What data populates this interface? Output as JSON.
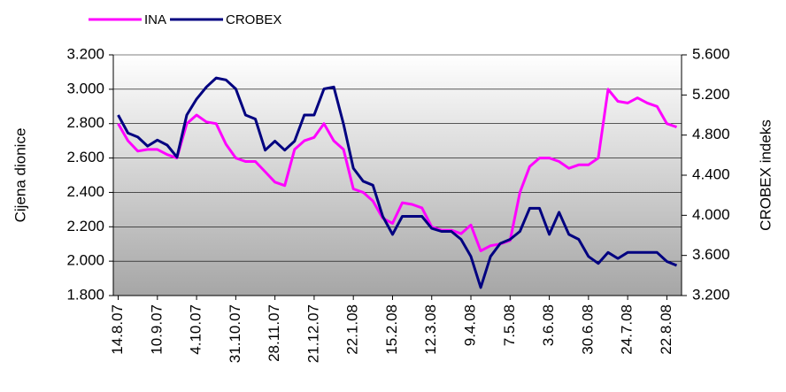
{
  "chart_data": {
    "type": "line",
    "ylabel": "Cijena dionice",
    "y2label": "CROBEX indeks",
    "categories": [
      "14.8.07",
      null,
      null,
      null,
      "10.9.07",
      null,
      null,
      null,
      "4.10.07",
      null,
      null,
      null,
      "31.10.07",
      null,
      null,
      null,
      "28.11.07",
      null,
      null,
      null,
      "21.12.07",
      null,
      null,
      null,
      "22.1.08",
      null,
      null,
      null,
      "15.2.08",
      null,
      null,
      null,
      "12.3.08",
      null,
      null,
      null,
      "9.4.08",
      null,
      null,
      null,
      "7.5.08",
      null,
      null,
      null,
      "3.6.08",
      null,
      null,
      null,
      "30.6.08",
      null,
      null,
      null,
      "24.7.08",
      null,
      null,
      null,
      "22.8.08",
      null
    ],
    "series": [
      {
        "name": "INA",
        "color": "#ff00ff",
        "axis": "y",
        "values": [
          2800,
          2700,
          2640,
          2650,
          2650,
          2620,
          2600,
          2800,
          2850,
          2810,
          2800,
          2680,
          2600,
          2580,
          2580,
          2520,
          2460,
          2440,
          2650,
          2700,
          2720,
          2800,
          2700,
          2650,
          2420,
          2400,
          2350,
          2250,
          2220,
          2340,
          2330,
          2310,
          2200,
          2180,
          2180,
          2160,
          2210,
          2060,
          2090,
          2100,
          2120,
          2400,
          2550,
          2600,
          2600,
          2580,
          2540,
          2560,
          2560,
          2600,
          3000,
          2930,
          2920,
          2950,
          2920,
          2900,
          2800,
          2780
        ]
      },
      {
        "name": "CROBEX",
        "color": "#000080",
        "axis": "y2",
        "values": [
          5000,
          4820,
          4780,
          4690,
          4750,
          4700,
          4580,
          5000,
          5160,
          5280,
          5370,
          5350,
          5260,
          5000,
          4960,
          4650,
          4740,
          4650,
          4740,
          5000,
          5000,
          5260,
          5280,
          4910,
          4470,
          4340,
          4300,
          3990,
          3810,
          3990,
          3990,
          3990,
          3870,
          3840,
          3840,
          3760,
          3590,
          3280,
          3590,
          3720,
          3760,
          3840,
          4070,
          4070,
          3810,
          4030,
          3810,
          3760,
          3590,
          3520,
          3630,
          3570,
          3630,
          3630,
          3630,
          3630,
          3540,
          3500
        ]
      }
    ],
    "ylim": [
      1800,
      3200
    ],
    "yticks": [
      {
        "value": 1800,
        "label": "1.800"
      },
      {
        "value": 2000,
        "label": "2.000"
      },
      {
        "value": 2200,
        "label": "2.200"
      },
      {
        "value": 2400,
        "label": "2.400"
      },
      {
        "value": 2600,
        "label": "2.600"
      },
      {
        "value": 2800,
        "label": "2.800"
      },
      {
        "value": 3000,
        "label": "3.000"
      },
      {
        "value": 3200,
        "label": "3.200"
      }
    ],
    "y2lim": [
      3200,
      5600
    ],
    "y2ticks": [
      {
        "value": 3200,
        "label": "3.200"
      },
      {
        "value": 3600,
        "label": "3.600"
      },
      {
        "value": 4000,
        "label": "4.000"
      },
      {
        "value": 4400,
        "label": "4.400"
      },
      {
        "value": 4800,
        "label": "4.800"
      },
      {
        "value": 5200,
        "label": "5.200"
      },
      {
        "value": 5600,
        "label": "5.600"
      }
    ],
    "grid": true,
    "legend": "top"
  }
}
